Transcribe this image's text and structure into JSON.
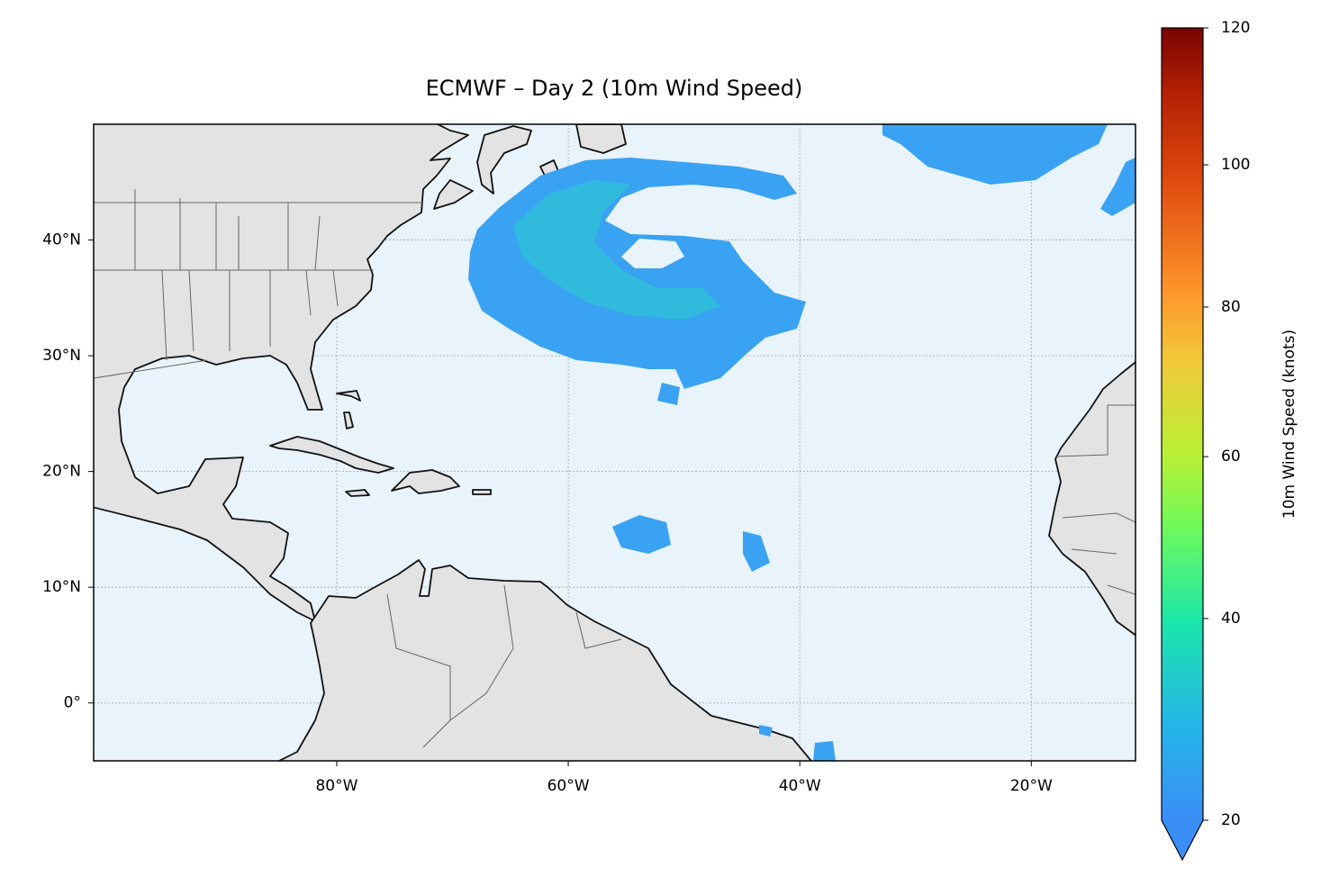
{
  "chart_data": {
    "type": "map",
    "title": "ECMWF – Day 2 (10m Wind Speed)",
    "xlim": [
      -101,
      -11
    ],
    "ylim": [
      -5,
      50
    ],
    "xticks": [
      {
        "value": -80,
        "label": "80°W"
      },
      {
        "value": -60,
        "label": "60°W"
      },
      {
        "value": -40,
        "label": "40°W"
      },
      {
        "value": -20,
        "label": "20°W"
      }
    ],
    "yticks": [
      {
        "value": 0,
        "label": "0°"
      },
      {
        "value": 10,
        "label": "10°N"
      },
      {
        "value": 20,
        "label": "20°N"
      },
      {
        "value": 30,
        "label": "30°N"
      },
      {
        "value": 40,
        "label": "40°N"
      }
    ],
    "grid": true,
    "colorbar": {
      "label": "10m Wind Speed (knots)",
      "lim": [
        20,
        120
      ],
      "ticks": [
        20,
        40,
        60,
        80,
        100,
        120
      ],
      "gamma": 0.85,
      "extend": "min"
    }
  }
}
